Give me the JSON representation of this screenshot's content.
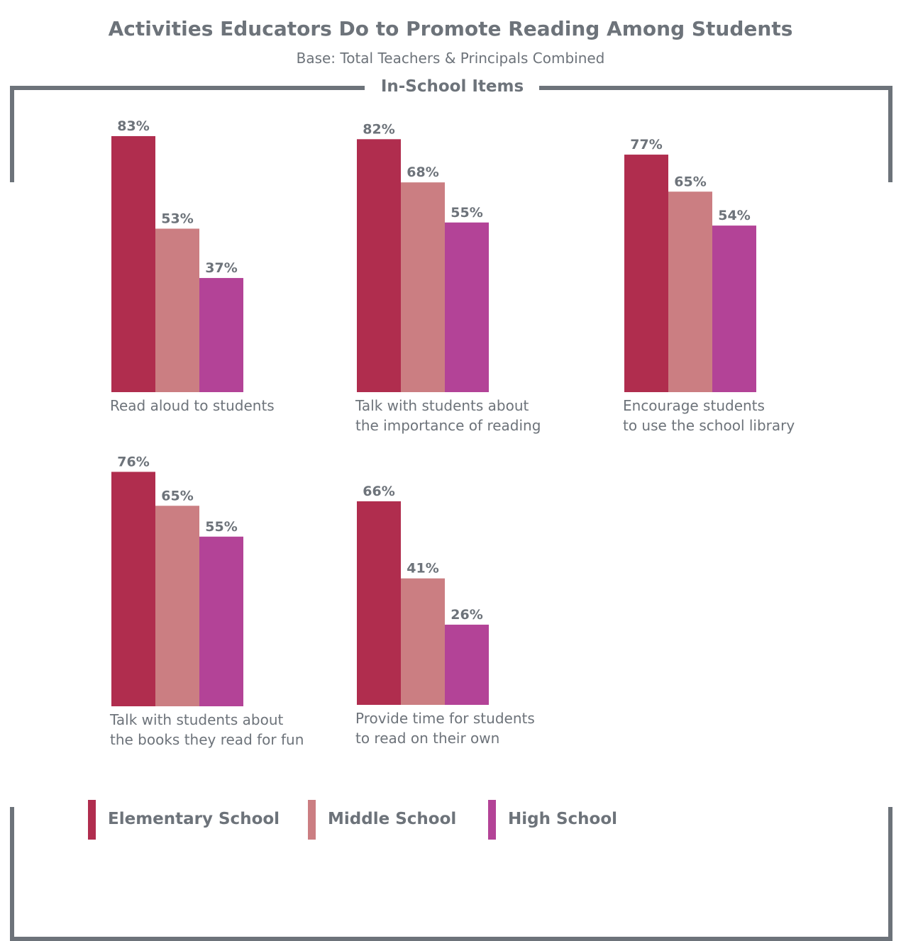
{
  "title": "Activities Educators Do to Promote Reading Among Students",
  "subtitle": "Base: Total Teachers & Principals Combined",
  "section_label": "In-School Items",
  "colors": {
    "elementary": "#b02d4e",
    "middle": "#cb7e82",
    "high": "#b34397",
    "frame": "#6d737a",
    "text": "#6d737a"
  },
  "chart_data": {
    "type": "bar",
    "title": "Activities Educators Do to Promote Reading Among Students",
    "subtitle": "Base: Total Teachers & Principals Combined",
    "unit": "%",
    "series": [
      {
        "name": "Elementary School",
        "color": "#b02d4e"
      },
      {
        "name": "Middle School",
        "color": "#cb7e82"
      },
      {
        "name": "High School",
        "color": "#b34397"
      }
    ],
    "groups": [
      {
        "label_lines": [
          "Read aloud to students"
        ],
        "values": [
          83,
          53,
          37
        ]
      },
      {
        "label_lines": [
          "Talk with students about",
          "the importance of reading"
        ],
        "values": [
          82,
          68,
          55
        ]
      },
      {
        "label_lines": [
          "Encourage students",
          "to use the school library"
        ],
        "values": [
          77,
          65,
          54
        ]
      },
      {
        "label_lines": [
          "Talk with students about",
          "the books they read for fun"
        ],
        "values": [
          76,
          65,
          55
        ]
      },
      {
        "label_lines": [
          "Provide time for students",
          "to read on their own"
        ],
        "values": [
          66,
          41,
          26
        ]
      }
    ],
    "legend": [
      "Elementary School",
      "Middle School",
      "High School"
    ],
    "legend_position": "bottom-left",
    "grid": false
  }
}
